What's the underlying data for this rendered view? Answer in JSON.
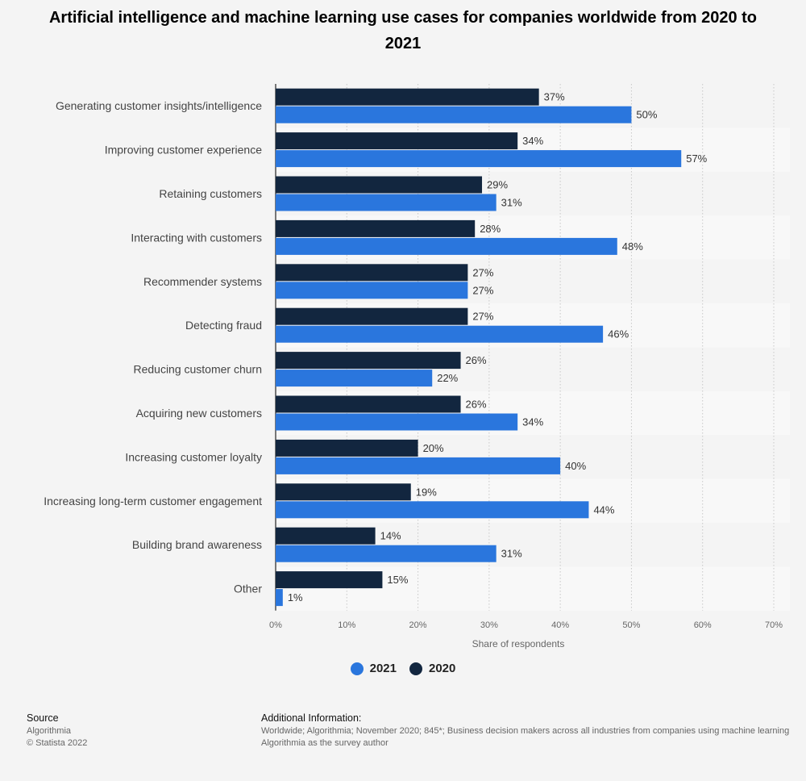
{
  "chart_data": {
    "type": "bar",
    "orientation": "horizontal",
    "title": "Artificial intelligence and machine learning use cases for companies worldwide from 2020 to 2021",
    "categories": [
      "Generating customer insights/intelligence",
      "Improving customer experience",
      "Retaining customers",
      "Interacting with customers",
      "Recommender systems",
      "Detecting fraud",
      "Reducing customer churn",
      "Acquiring new customers",
      "Increasing customer loyalty",
      "Increasing long-term customer engagement",
      "Building brand awareness",
      "Other"
    ],
    "series": [
      {
        "name": "2020",
        "color": "#12263f",
        "values": [
          37,
          34,
          29,
          28,
          27,
          27,
          26,
          26,
          20,
          19,
          14,
          15
        ]
      },
      {
        "name": "2021",
        "color": "#2a76dd",
        "values": [
          50,
          57,
          31,
          48,
          27,
          46,
          22,
          34,
          40,
          44,
          31,
          1
        ]
      }
    ],
    "xlabel": "Share of respondents",
    "ylabel": "",
    "xlim": [
      0,
      70
    ],
    "ticks": [
      "0%",
      "10%",
      "20%",
      "30%",
      "40%",
      "50%",
      "60%",
      "70%"
    ],
    "value_suffix": "%",
    "grid": true,
    "legend": [
      "2021",
      "2020"
    ],
    "legend_position": "bottom-center"
  },
  "footer": {
    "source_heading": "Source",
    "source_name": "Algorithmia",
    "copyright": "© Statista 2022",
    "additional_heading": "Additional Information:",
    "additional_line1": "Worldwide; Algorithmia; November 2020; 845*; Business decision makers across all industries from companies using machine learning",
    "additional_line2": "Algorithmia as the survey author"
  }
}
